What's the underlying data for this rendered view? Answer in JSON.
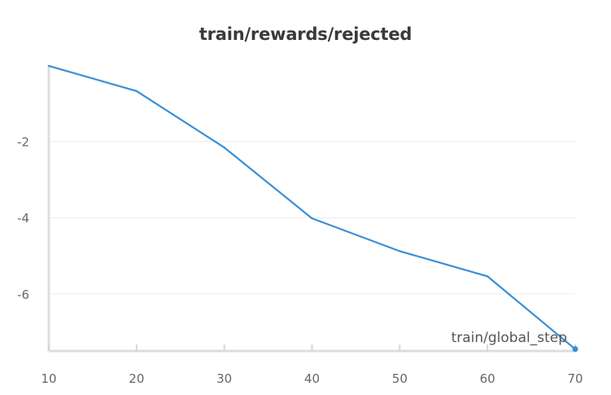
{
  "chart_data": {
    "type": "line",
    "title": "train/rewards/rejected",
    "xlabel": "train/global_step",
    "ylabel": "",
    "x": [
      10,
      20,
      30,
      40,
      50,
      60,
      70
    ],
    "series": [
      {
        "values": [
          -0.02,
          -0.68,
          -2.16,
          -4.02,
          -4.88,
          -5.54,
          -7.45
        ],
        "color": "#3a8fd6"
      }
    ],
    "xlim": [
      10,
      70
    ],
    "ylim": [
      -7.5,
      0.0
    ],
    "x_ticks": [
      10,
      20,
      30,
      40,
      50,
      60,
      70
    ],
    "y_ticks": [
      -2,
      -4,
      -6
    ],
    "grid": true,
    "legend": "none"
  }
}
